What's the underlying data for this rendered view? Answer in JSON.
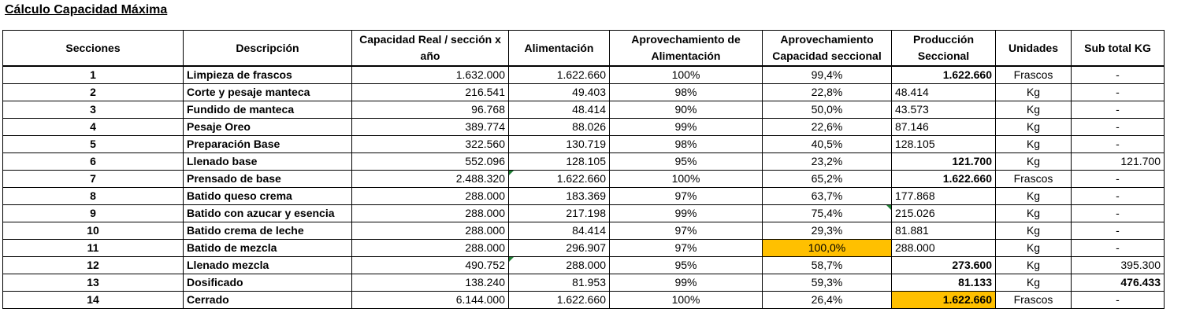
{
  "title": "Cálculo Capacidad Máxima",
  "headers": [
    "Secciones",
    "Descripción",
    "Capacidad Real / sección x año",
    "Alimentación",
    "Aprovechamiento de Alimentación",
    "Aprovechamiento Capacidad seccional",
    "Producción Seccional",
    "Unidades",
    "Sub total KG"
  ],
  "rows": [
    {
      "seccion": "1",
      "descripcion": "Limpieza de frascos",
      "capacidad": "1.632.000",
      "alimentacion": "1.622.660",
      "aprov_alim": "100%",
      "aprov_cap": "99,4%",
      "produccion": "1.622.660",
      "unidades": "Frascos",
      "subtotal": "-"
    },
    {
      "seccion": "2",
      "descripcion": "Corte y pesaje manteca",
      "capacidad": "216.541",
      "alimentacion": "49.403",
      "aprov_alim": "98%",
      "aprov_cap": "22,8%",
      "produccion": "48.414",
      "unidades": "Kg",
      "subtotal": "-"
    },
    {
      "seccion": "3",
      "descripcion": "Fundido de manteca",
      "capacidad": "96.768",
      "alimentacion": "48.414",
      "aprov_alim": "90%",
      "aprov_cap": "50,0%",
      "produccion": "43.573",
      "unidades": "Kg",
      "subtotal": "-"
    },
    {
      "seccion": "4",
      "descripcion": "Pesaje Oreo",
      "capacidad": "389.774",
      "alimentacion": "88.026",
      "aprov_alim": "99%",
      "aprov_cap": "22,6%",
      "produccion": "87.146",
      "unidades": "Kg",
      "subtotal": "-"
    },
    {
      "seccion": "5",
      "descripcion": "Preparación Base",
      "capacidad": "322.560",
      "alimentacion": "130.719",
      "aprov_alim": "98%",
      "aprov_cap": "40,5%",
      "produccion": "128.105",
      "unidades": "Kg",
      "subtotal": "-"
    },
    {
      "seccion": "6",
      "descripcion": "Llenado base",
      "capacidad": "552.096",
      "alimentacion": "128.105",
      "aprov_alim": "95%",
      "aprov_cap": "23,2%",
      "produccion": "121.700",
      "unidades": "Kg",
      "subtotal": "121.700"
    },
    {
      "seccion": "7",
      "descripcion": "Prensado de base",
      "capacidad": "2.488.320",
      "alimentacion": "1.622.660",
      "aprov_alim": "100%",
      "aprov_cap": "65,2%",
      "produccion": "1.622.660",
      "unidades": "Frascos",
      "subtotal": "-"
    },
    {
      "seccion": "8",
      "descripcion": "Batido queso crema",
      "capacidad": "288.000",
      "alimentacion": "183.369",
      "aprov_alim": "97%",
      "aprov_cap": "63,7%",
      "produccion": "177.868",
      "unidades": "Kg",
      "subtotal": "-"
    },
    {
      "seccion": "9",
      "descripcion": "Batido con azucar y esencia",
      "capacidad": "288.000",
      "alimentacion": "217.198",
      "aprov_alim": "99%",
      "aprov_cap": "75,4%",
      "produccion": "215.026",
      "unidades": "Kg",
      "subtotal": "-"
    },
    {
      "seccion": "10",
      "descripcion": "Batido crema de leche",
      "capacidad": "288.000",
      "alimentacion": "84.414",
      "aprov_alim": "97%",
      "aprov_cap": "29,3%",
      "produccion": "81.881",
      "unidades": "Kg",
      "subtotal": "-"
    },
    {
      "seccion": "11",
      "descripcion": "Batido de mezcla",
      "capacidad": "288.000",
      "alimentacion": "296.907",
      "aprov_alim": "97%",
      "aprov_cap": "100,0%",
      "produccion": "288.000",
      "unidades": "Kg",
      "subtotal": "-"
    },
    {
      "seccion": "12",
      "descripcion": "Llenado mezcla",
      "capacidad": "490.752",
      "alimentacion": "288.000",
      "aprov_alim": "95%",
      "aprov_cap": "58,7%",
      "produccion": "273.600",
      "unidades": "Kg",
      "subtotal": "395.300"
    },
    {
      "seccion": "13",
      "descripcion": "Dosificado",
      "capacidad": "138.240",
      "alimentacion": "81.953",
      "aprov_alim": "99%",
      "aprov_cap": "59,3%",
      "produccion": "81.133",
      "unidades": "Kg",
      "subtotal": "476.433"
    },
    {
      "seccion": "14",
      "descripcion": "Cerrado",
      "capacidad": "6.144.000",
      "alimentacion": "1.622.660",
      "aprov_alim": "100%",
      "aprov_cap": "26,4%",
      "produccion": "1.622.660",
      "unidades": "Frascos",
      "subtotal": "-"
    }
  ],
  "highlight_color": "#ffc000"
}
